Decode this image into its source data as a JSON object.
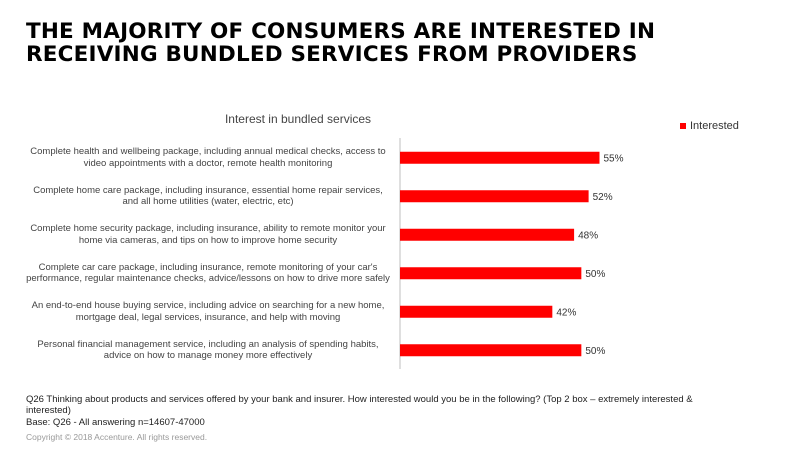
{
  "headline": "THE MAJORITY OF CONSUMERS ARE INTERESTED IN RECEIVING BUNDLED SERVICES FROM PROVIDERS",
  "footer": {
    "question": "Q26 Thinking about products and services offered by your bank and insurer.  How interested would you be in the following? (Top 2 box – extremely interested & interested)",
    "base": "Base: Q26 - All answering n=14607-47000",
    "copyright": "Copyright © 2018 Accenture. All rights reserved."
  },
  "colors": {
    "bar": "#ff0000",
    "axis": "#bfbfbf",
    "text": "#333333"
  },
  "chart_data": {
    "type": "bar",
    "orientation": "horizontal",
    "title": "Interest in bundled services",
    "categories": [
      "Complete health and wellbeing package, including annual medical checks, access to video appointments with a doctor, remote health monitoring",
      "Complete home care package, including insurance, essential home repair services, and all home utilities (water, electric, etc)",
      "Complete home security package, including insurance, ability to remote monitor your home via cameras, and tips on how to improve home security",
      "Complete car care package, including insurance,  remote monitoring of your car's performance, regular maintenance checks, advice/lessons on how to drive more safely",
      "An end-to-end house buying service, including advice on searching for a new home, mortgage deal, legal services, insurance, and help with moving",
      "Personal financial management service, including an analysis of spending habits, advice on how to manage money more effectively"
    ],
    "series": [
      {
        "name": "Interested",
        "values": [
          55,
          52,
          48,
          50,
          42,
          50
        ]
      }
    ],
    "data_labels": [
      "55%",
      "52%",
      "48%",
      "50%",
      "42%",
      "50%"
    ],
    "xlim": [
      0,
      100
    ],
    "unit": "%",
    "grid": false,
    "legend_position": "top-right"
  }
}
